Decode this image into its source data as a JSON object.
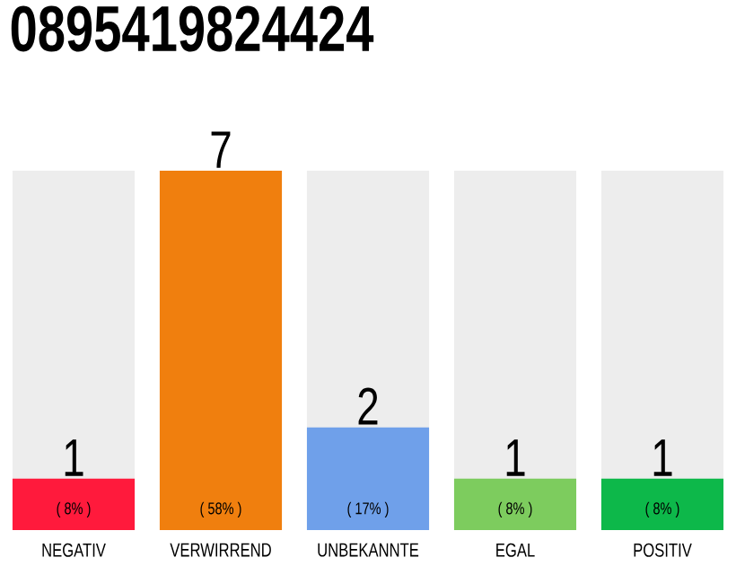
{
  "chart_data": {
    "type": "bar",
    "title": "0895419824424",
    "categories": [
      "NEGATIV",
      "VERWIRREND",
      "UNBEKANNTE",
      "EGAL",
      "POSITIV"
    ],
    "values": [
      1,
      7,
      2,
      1,
      1
    ],
    "colors": [
      "#ff1a3c",
      "#f07f0e",
      "#6fa0ea",
      "#7dcc5e",
      "#0db84a"
    ],
    "ylim": [
      0,
      7
    ],
    "data_labels": true,
    "annotations": [
      "( 8% )",
      "( 58% )",
      "( 17% )",
      "( 8% )",
      "( 8% )"
    ]
  }
}
